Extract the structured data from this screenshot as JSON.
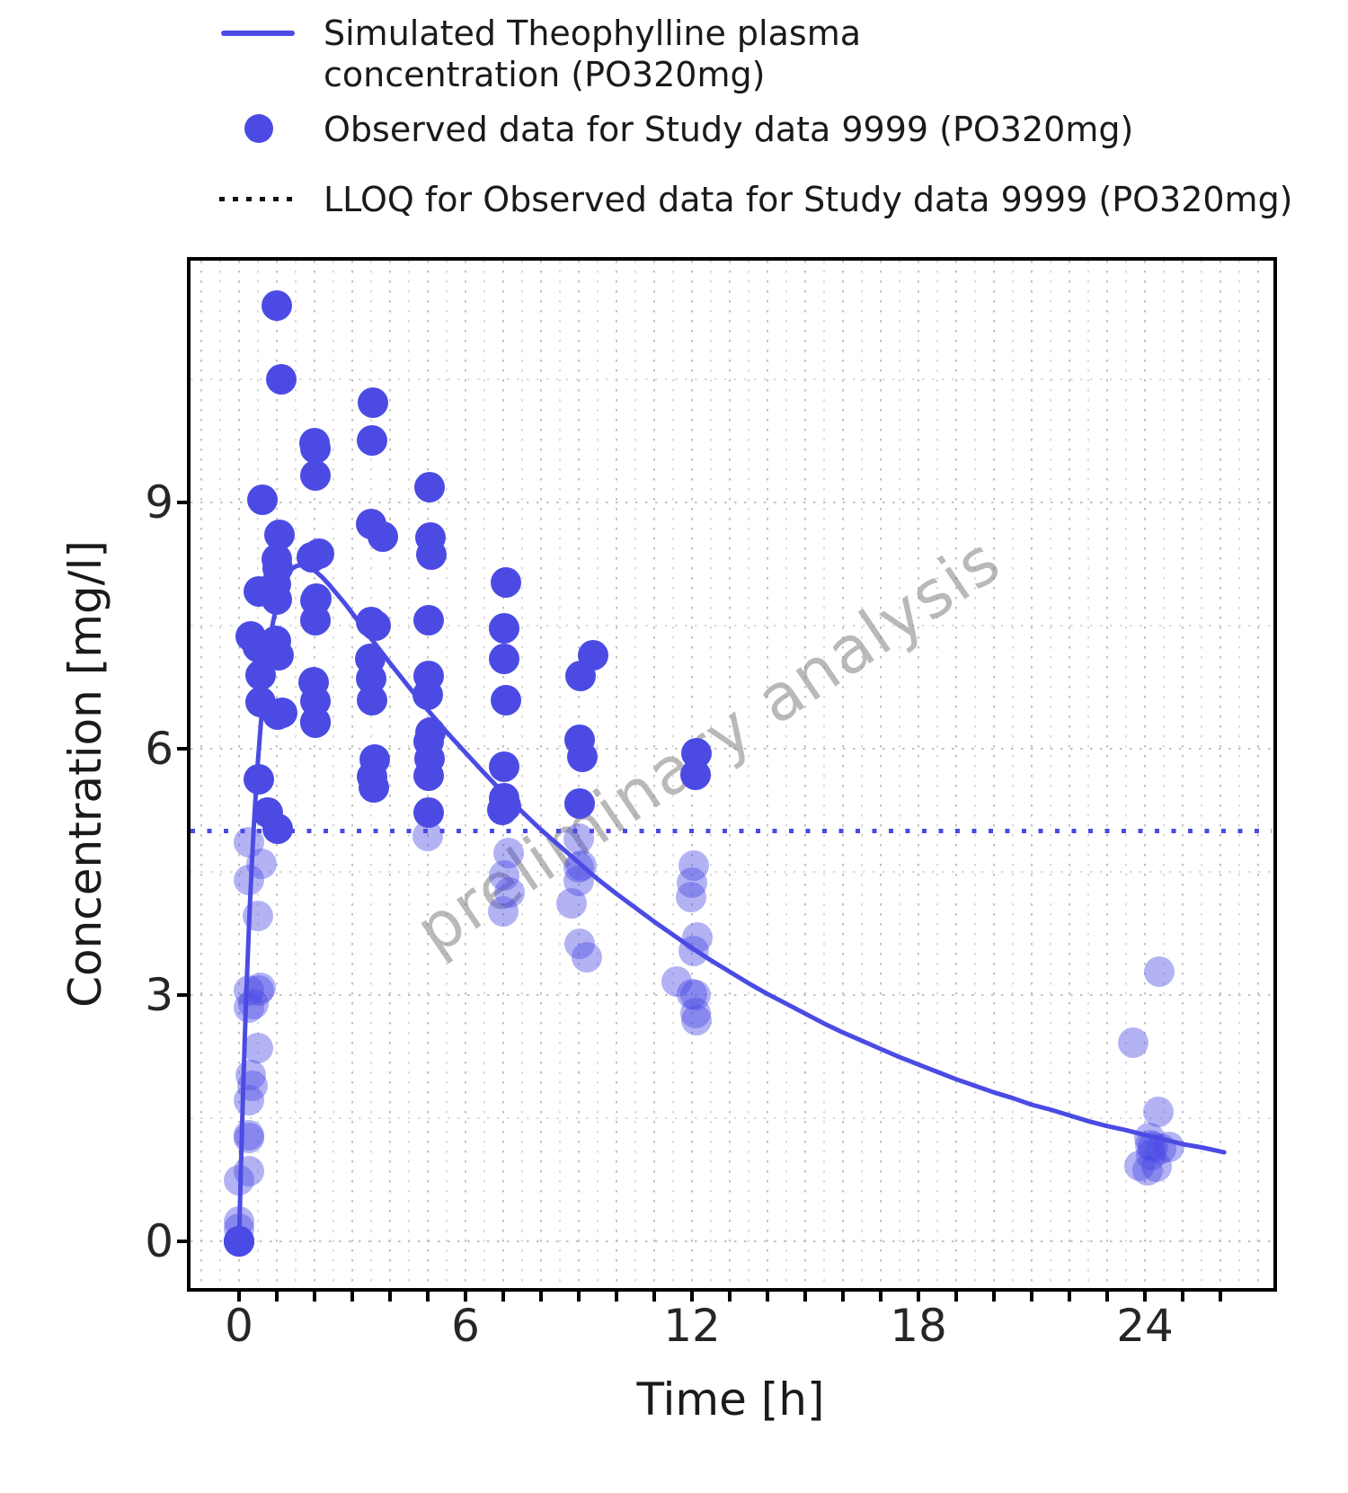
{
  "legend": {
    "items": [
      {
        "id": "simulated",
        "glyph": "line-icon",
        "label": "Simulated Theophylline plasma concentration (PO320mg)"
      },
      {
        "id": "observed",
        "glyph": "point-icon",
        "label": "Observed data for Study data 9999 (PO320mg)"
      },
      {
        "id": "lloq",
        "glyph": "dotted-line-icon",
        "label": "LLOQ for Observed data for Study data 9999 (PO320mg)"
      }
    ]
  },
  "watermark": {
    "text": "preliminary analysis"
  },
  "colors": {
    "series_blue": "#4b4be4",
    "faded_point_opacity": 0.42,
    "grid_minor": "#dadada",
    "grid_major": "#c0c0c0",
    "axis_black": "#000000",
    "text": "#1a1a1a",
    "watermark_gray": "#b9b9b9"
  },
  "chart_data": {
    "type": "scatter",
    "title": "",
    "xlabel": "Time [h]",
    "ylabel": "Concentration [mg/l]",
    "x_tick_labels": [
      0,
      6,
      12,
      18,
      24
    ],
    "x_minor_tick_step": 1,
    "x_minor_tick_range": [
      0,
      26
    ],
    "y_tick_labels": [
      0,
      3,
      6,
      9
    ],
    "x_range": [
      -1.3,
      27.4
    ],
    "y_range": [
      -0.57,
      11.97
    ],
    "x_gridline_step": 0.5,
    "y_gridline_step": 1.5,
    "grid": "dotted",
    "legend_position": "top-left",
    "lloq": {
      "name": "LLOQ for Observed data for Study data 9999 (PO320mg)",
      "value": 5,
      "style": "blue dotted horizontal line; observed points below LLOQ are drawn faded"
    },
    "series": [
      {
        "name": "Simulated Theophylline plasma concentration (PO320mg)",
        "type": "line",
        "points": [
          [
            0,
            0
          ],
          [
            0.05,
            0.9
          ],
          [
            0.1,
            1.71
          ],
          [
            0.15,
            2.44
          ],
          [
            0.2,
            3.1
          ],
          [
            0.25,
            3.69
          ],
          [
            0.3,
            4.22
          ],
          [
            0.35,
            4.69
          ],
          [
            0.4,
            5.12
          ],
          [
            0.45,
            5.5
          ],
          [
            0.5,
            5.85
          ],
          [
            0.58,
            6.32
          ],
          [
            0.65,
            6.67
          ],
          [
            0.72,
            6.97
          ],
          [
            0.8,
            7.25
          ],
          [
            0.9,
            7.54
          ],
          [
            1,
            7.75
          ],
          [
            1.1,
            7.92
          ],
          [
            1.2,
            8.04
          ],
          [
            1.3,
            8.13
          ],
          [
            1.4,
            8.19
          ],
          [
            1.5,
            8.22
          ],
          [
            1.65,
            8.24
          ],
          [
            1.8,
            8.23
          ],
          [
            2,
            8.17
          ],
          [
            2.2,
            8.09
          ],
          [
            2.4,
            7.99
          ],
          [
            2.6,
            7.88
          ],
          [
            2.8,
            7.77
          ],
          [
            3,
            7.65
          ],
          [
            3.5,
            7.34
          ],
          [
            4,
            7.04
          ],
          [
            4.5,
            6.75
          ],
          [
            5,
            6.47
          ],
          [
            5.5,
            6.2
          ],
          [
            6,
            5.95
          ],
          [
            6.5,
            5.7
          ],
          [
            7,
            5.46
          ],
          [
            7.5,
            5.23
          ],
          [
            8,
            5.01
          ],
          [
            8.5,
            4.81
          ],
          [
            9,
            4.61
          ],
          [
            9.5,
            4.41
          ],
          [
            10,
            4.23
          ],
          [
            10.5,
            4.06
          ],
          [
            11,
            3.89
          ],
          [
            11.5,
            3.73
          ],
          [
            12,
            3.57
          ],
          [
            12.5,
            3.42
          ],
          [
            13,
            3.28
          ],
          [
            13.5,
            3.14
          ],
          [
            14,
            3.01
          ],
          [
            14.5,
            2.89
          ],
          [
            15,
            2.77
          ],
          [
            15.5,
            2.65
          ],
          [
            16,
            2.54
          ],
          [
            16.5,
            2.44
          ],
          [
            17,
            2.34
          ],
          [
            17.5,
            2.24
          ],
          [
            18,
            2.15
          ],
          [
            18.5,
            2.06
          ],
          [
            19,
            1.97
          ],
          [
            19.5,
            1.89
          ],
          [
            20,
            1.81
          ],
          [
            20.5,
            1.74
          ],
          [
            21,
            1.66
          ],
          [
            21.5,
            1.6
          ],
          [
            22,
            1.53
          ],
          [
            22.5,
            1.46
          ],
          [
            23,
            1.4
          ],
          [
            23.5,
            1.35
          ],
          [
            24,
            1.29
          ],
          [
            24.5,
            1.24
          ],
          [
            25,
            1.18
          ],
          [
            25.5,
            1.14
          ],
          [
            26,
            1.09
          ],
          [
            26.1,
            1.08
          ]
        ]
      },
      {
        "name": "Observed data for Study data 9999 (PO320mg)",
        "type": "scatter",
        "points": [
          [
            0,
            0.74
          ],
          [
            0.25,
            2.84
          ],
          [
            0.57,
            6.57
          ],
          [
            1.12,
            10.5
          ],
          [
            2.02,
            9.66
          ],
          [
            3.82,
            8.58
          ],
          [
            5.1,
            8.36
          ],
          [
            7.03,
            7.47
          ],
          [
            9.05,
            6.89
          ],
          [
            12.12,
            5.94
          ],
          [
            24.37,
            3.28
          ],
          [
            0,
            0
          ],
          [
            0.27,
            1.72
          ],
          [
            0.52,
            7.91
          ],
          [
            1,
            8.31
          ],
          [
            1.92,
            8.33
          ],
          [
            3.5,
            6.85
          ],
          [
            5.02,
            6.08
          ],
          [
            7.03,
            5.4
          ],
          [
            9,
            4.55
          ],
          [
            12,
            3.01
          ],
          [
            24.3,
            0.9
          ],
          [
            0,
            0
          ],
          [
            0.27,
            4.4
          ],
          [
            0.58,
            6.9
          ],
          [
            1.02,
            8.2
          ],
          [
            2.02,
            7.8
          ],
          [
            3.62,
            7.5
          ],
          [
            5.08,
            6.2
          ],
          [
            7.07,
            5.3
          ],
          [
            9,
            4.9
          ],
          [
            12.15,
            3.7
          ],
          [
            24.17,
            1.05
          ],
          [
            0,
            0
          ],
          [
            0.35,
            1.89
          ],
          [
            0.6,
            4.6
          ],
          [
            1.07,
            8.6
          ],
          [
            2.13,
            8.38
          ],
          [
            3.5,
            7.54
          ],
          [
            5.02,
            6.88
          ],
          [
            7.02,
            5.78
          ],
          [
            9.02,
            5.33
          ],
          [
            11.98,
            4.19
          ],
          [
            24.65,
            1.15
          ],
          [
            0,
            0
          ],
          [
            0.3,
            2.02
          ],
          [
            0.52,
            5.63
          ],
          [
            1,
            11.4
          ],
          [
            2.02,
            9.33
          ],
          [
            3.5,
            8.74
          ],
          [
            5.02,
            7.56
          ],
          [
            7.02,
            7.09
          ],
          [
            9.1,
            5.9
          ],
          [
            12,
            4.37
          ],
          [
            24.35,
            1.57
          ],
          [
            0,
            0
          ],
          [
            0.27,
            1.29
          ],
          [
            0.58,
            3.08
          ],
          [
            1.15,
            6.44
          ],
          [
            2.03,
            6.32
          ],
          [
            3.57,
            5.53
          ],
          [
            5,
            4.94
          ],
          [
            7,
            4.02
          ],
          [
            9.22,
            3.46
          ],
          [
            12.1,
            2.78
          ],
          [
            23.85,
            0.92
          ],
          [
            0,
            0.15
          ],
          [
            0.25,
            0.85
          ],
          [
            0.5,
            2.35
          ],
          [
            1.02,
            5.02
          ],
          [
            2.02,
            6.58
          ],
          [
            3.48,
            7.09
          ],
          [
            5,
            6.66
          ],
          [
            6.98,
            5.25
          ],
          [
            9,
            4.39
          ],
          [
            12.05,
            3.53
          ],
          [
            24.22,
            1.15
          ],
          [
            0,
            0
          ],
          [
            0.25,
            3.05
          ],
          [
            0.52,
            3.05
          ],
          [
            0.98,
            7.31
          ],
          [
            2.02,
            7.56
          ],
          [
            3.53,
            6.59
          ],
          [
            5.05,
            5.88
          ],
          [
            7.15,
            4.73
          ],
          [
            9.07,
            4.57
          ],
          [
            12.1,
            3
          ],
          [
            24.12,
            1.25
          ],
          [
            0,
            0
          ],
          [
            0.3,
            7.37
          ],
          [
            0.63,
            9.03
          ],
          [
            1.05,
            7.14
          ],
          [
            2.02,
            6.33
          ],
          [
            3.53,
            5.66
          ],
          [
            5.02,
            5.67
          ],
          [
            7.17,
            4.24
          ],
          [
            8.8,
            4.11
          ],
          [
            11.6,
            3.16
          ],
          [
            24.43,
            1.12
          ],
          [
            0,
            0.24
          ],
          [
            0.37,
            2.89
          ],
          [
            0.77,
            5.22
          ],
          [
            1.02,
            6.41
          ],
          [
            2.05,
            7.83
          ],
          [
            3.55,
            10.21
          ],
          [
            5.05,
            9.18
          ],
          [
            7.08,
            8.02
          ],
          [
            9.38,
            7.14
          ],
          [
            12.1,
            5.68
          ],
          [
            23.7,
            2.42
          ],
          [
            0,
            0
          ],
          [
            0.25,
            4.86
          ],
          [
            0.5,
            7.24
          ],
          [
            0.98,
            8
          ],
          [
            1.98,
            6.81
          ],
          [
            3.6,
            5.87
          ],
          [
            5.02,
            5.22
          ],
          [
            7.03,
            4.45
          ],
          [
            9.03,
            3.62
          ],
          [
            12.12,
            2.69
          ],
          [
            24.08,
            0.86
          ],
          [
            0,
            0
          ],
          [
            0.25,
            1.25
          ],
          [
            0.5,
            3.96
          ],
          [
            1,
            7.82
          ],
          [
            2,
            9.72
          ],
          [
            3.52,
            9.75
          ],
          [
            5.07,
            8.57
          ],
          [
            7.07,
            6.59
          ],
          [
            9.03,
            6.11
          ],
          [
            12.05,
            4.57
          ],
          [
            24.15,
            1.17
          ]
        ]
      }
    ]
  }
}
